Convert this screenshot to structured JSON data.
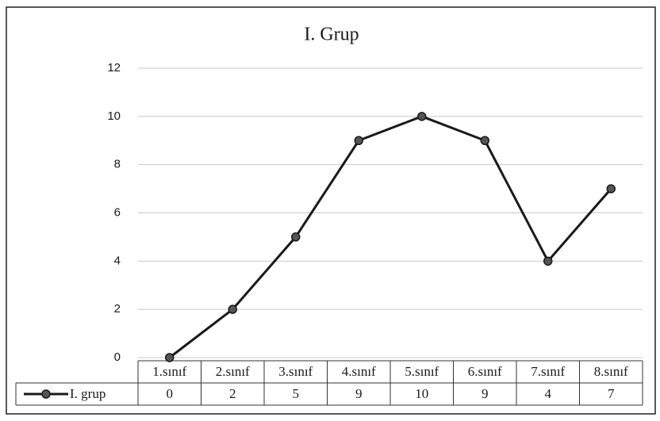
{
  "chart_data": {
    "type": "line",
    "title": "I. Grup",
    "categories": [
      "1.sınıf",
      "2.sınıf",
      "3.sınıf",
      "4.sınıf",
      "5.sınıf",
      "6.sınıf",
      "7.sınıf",
      "8.sınıf"
    ],
    "series": [
      {
        "name": "I. grup",
        "color": "#1a1a1a",
        "values": [
          0,
          2,
          5,
          9,
          10,
          9,
          4,
          7
        ]
      }
    ],
    "ylim": [
      0,
      12
    ],
    "yticks": [
      0,
      2,
      4,
      6,
      8,
      10,
      12
    ],
    "grid": true,
    "data_table": true
  }
}
